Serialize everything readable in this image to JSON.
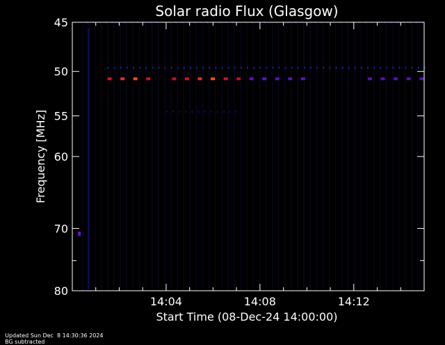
{
  "chart_data": {
    "type": "heatmap",
    "title": "Solar radio Flux (Glasgow)",
    "xlabel": "Start Time (08-Dec-24 14:00:00)",
    "ylabel": "Frequency [MHz]",
    "x_unit": "minutes after 14:00:00",
    "xlim": [
      0,
      15.0
    ],
    "ylim_frequency_mhz": [
      45,
      80
    ],
    "y_tick_labels": [
      "45",
      "50",
      "55",
      "60",
      "70",
      "80"
    ],
    "x_tick_labels": [
      "14:04",
      "14:08",
      "14:12"
    ],
    "background_color": "#000000",
    "axis_color": "#ffffff",
    "colorscale": [
      "#000010",
      "#0a0a60",
      "#4b0fa8",
      "#8a0a8a",
      "#d81020",
      "#ff4a10"
    ],
    "features": [
      {
        "kind": "steady-band",
        "frequency": 50.8,
        "start_time": 1.5,
        "end_time": 10.2,
        "gap": [
          3.2,
          4.0
        ],
        "intensity": "high"
      },
      {
        "kind": "steady-band",
        "frequency": 50.8,
        "start_time": 12.6,
        "end_time": 15.0,
        "intensity": "medium"
      },
      {
        "kind": "faint-band",
        "frequency": 49.6,
        "start_time": 1.5,
        "end_time": 15.0,
        "intensity": "low"
      },
      {
        "kind": "faint-band",
        "frequency": 45.0,
        "start_time": 0.6,
        "end_time": 15.0,
        "intensity": "very-low"
      },
      {
        "kind": "faint-band",
        "frequency": 54.5,
        "start_time": 4.0,
        "end_time": 7.0,
        "intensity": "very-low"
      },
      {
        "kind": "isolated-point",
        "frequency": 70.8,
        "time": 0.3,
        "intensity": "medium"
      }
    ]
  },
  "footer": {
    "updated": "Updated Sun Dec  8 14:30:36 2024",
    "note": "BG subtracted"
  }
}
